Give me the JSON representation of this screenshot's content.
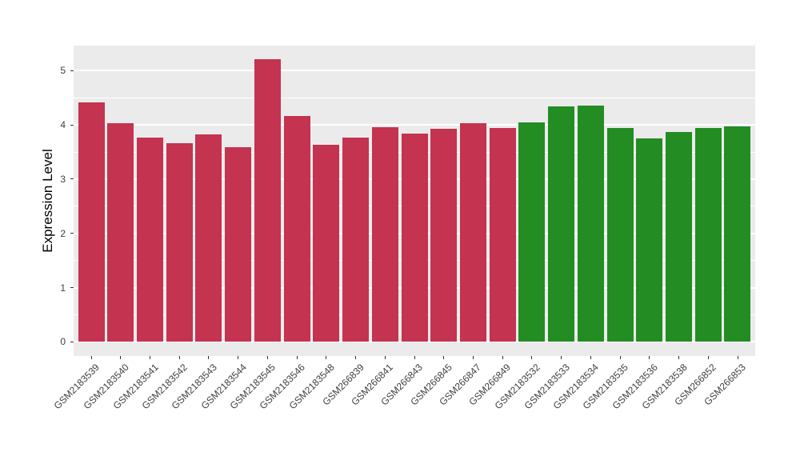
{
  "figure": {
    "background": "#FFFFFF"
  },
  "chart_data": {
    "type": "bar",
    "title": "",
    "xlabel": "",
    "ylabel": "Expression Level",
    "ylim": [
      -0.26,
      5.46
    ],
    "yticks": [
      0,
      1,
      2,
      3,
      4,
      5
    ],
    "grid": "on",
    "legend": "none",
    "panel_bg": "#EBEBEB",
    "grid_color": "#FFFFFF",
    "tick_color": "#333333",
    "axis_text_color": "#404040",
    "group_colors": {
      "red": "#C4334F",
      "green": "#238C23"
    },
    "bars": [
      {
        "label": "GSM2183539",
        "value": 4.42,
        "group": "red"
      },
      {
        "label": "GSM2183540",
        "value": 4.03,
        "group": "red"
      },
      {
        "label": "GSM2183541",
        "value": 3.77,
        "group": "red"
      },
      {
        "label": "GSM2183542",
        "value": 3.66,
        "group": "red"
      },
      {
        "label": "GSM2183543",
        "value": 3.83,
        "group": "red"
      },
      {
        "label": "GSM2183544",
        "value": 3.59,
        "group": "red"
      },
      {
        "label": "GSM2183545",
        "value": 5.21,
        "group": "red"
      },
      {
        "label": "GSM2183546",
        "value": 4.17,
        "group": "red"
      },
      {
        "label": "GSM2183548",
        "value": 3.64,
        "group": "red"
      },
      {
        "label": "GSM266839",
        "value": 3.77,
        "group": "red"
      },
      {
        "label": "GSM266841",
        "value": 3.96,
        "group": "red"
      },
      {
        "label": "GSM266843",
        "value": 3.84,
        "group": "red"
      },
      {
        "label": "GSM266845",
        "value": 3.93,
        "group": "red"
      },
      {
        "label": "GSM266847",
        "value": 4.03,
        "group": "red"
      },
      {
        "label": "GSM266849",
        "value": 3.94,
        "group": "red"
      },
      {
        "label": "GSM2183532",
        "value": 4.05,
        "group": "green"
      },
      {
        "label": "GSM2183533",
        "value": 4.34,
        "group": "green"
      },
      {
        "label": "GSM2183534",
        "value": 4.36,
        "group": "green"
      },
      {
        "label": "GSM2183535",
        "value": 3.94,
        "group": "green"
      },
      {
        "label": "GSM2183536",
        "value": 3.75,
        "group": "green"
      },
      {
        "label": "GSM2183538",
        "value": 3.87,
        "group": "green"
      },
      {
        "label": "GSM266852",
        "value": 3.94,
        "group": "green"
      },
      {
        "label": "GSM266853",
        "value": 3.97,
        "group": "green"
      }
    ]
  }
}
